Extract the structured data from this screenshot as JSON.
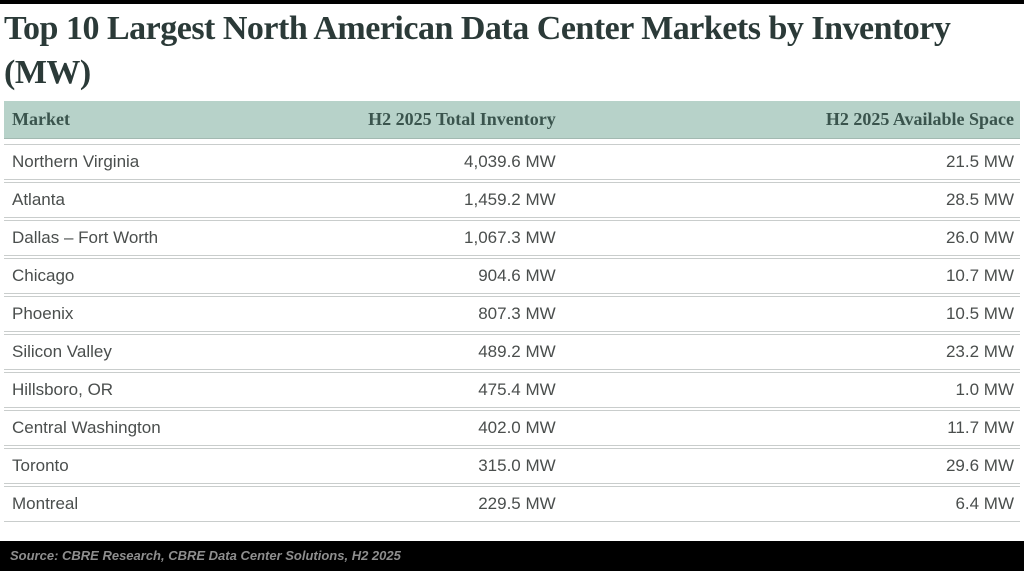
{
  "colors": {
    "top_bar": "#000000",
    "title_text": "#2b3a38",
    "header_bg": "#b7d2c9",
    "header_text": "#3a544d",
    "row_text": "#4a4e4d",
    "row_border": "#c9cdcc",
    "footer_bg": "#000000",
    "footer_text": "#8e8e8e"
  },
  "chart_data": {
    "type": "table",
    "title": "Top 10 Largest North American Data Center Markets by Inventory (MW)",
    "columns": [
      "Market",
      "H2 2025 Total Inventory",
      "H2 2025 Available Space"
    ],
    "rows": [
      [
        "Northern Virginia",
        "4,039.6 MW",
        "21.5 MW"
      ],
      [
        "Atlanta",
        "1,459.2 MW",
        "28.5 MW"
      ],
      [
        "Dallas – Fort Worth",
        "1,067.3 MW",
        "26.0 MW"
      ],
      [
        "Chicago",
        "904.6 MW",
        "10.7 MW"
      ],
      [
        "Phoenix",
        "807.3 MW",
        "10.5 MW"
      ],
      [
        "Silicon Valley",
        "489.2 MW",
        "23.2 MW"
      ],
      [
        "Hillsboro, OR",
        "475.4 MW",
        "1.0 MW"
      ],
      [
        "Central Washington",
        "402.0 MW",
        "11.7 MW"
      ],
      [
        "Toronto",
        "315.0 MW",
        "29.6 MW"
      ],
      [
        "Montreal",
        "229.5 MW",
        "6.4 MW"
      ]
    ],
    "source": "Source: CBRE Research, CBRE Data Center Solutions, H2 2025"
  }
}
